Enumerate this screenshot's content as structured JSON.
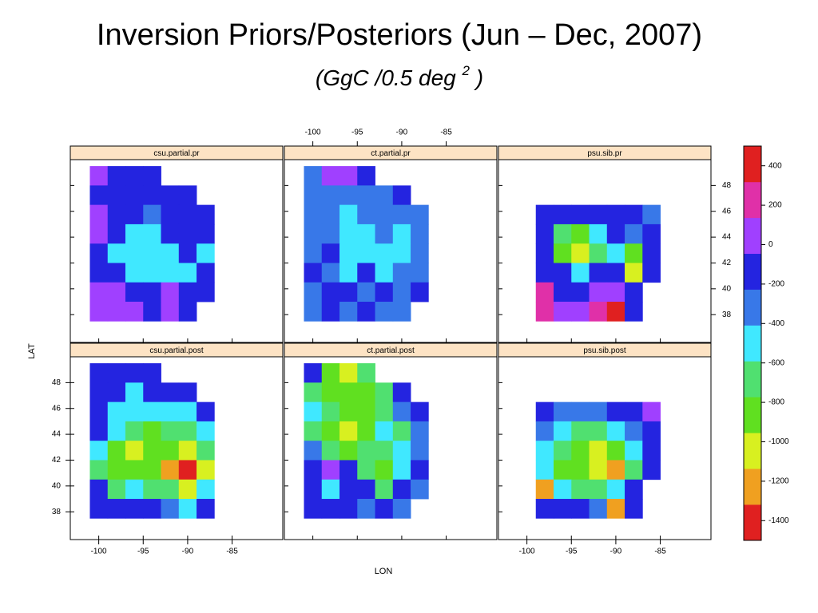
{
  "chart_data": {
    "type": "heatmap",
    "title": "Inversion Priors/Posteriors (Jun – Dec, 2007)",
    "subtitle": "(GgC /0.5 deg",
    "subtitle_sup": "2",
    "subtitle_end": ")",
    "x_label": "LON",
    "y_label": "LAT",
    "xlim": [
      -103.2,
      -79.3
    ],
    "ylim": [
      35.85,
      50.0
    ],
    "xticks": [
      -100,
      -95,
      -90,
      -85
    ],
    "yticks": [
      38,
      40,
      42,
      44,
      46,
      48
    ],
    "cell_lon": [
      -100,
      -98,
      -96,
      -94,
      -92,
      -90,
      -88,
      -86
    ],
    "cell_lat": [
      48.75,
      47.25,
      45.75,
      44.25,
      42.75,
      41.25,
      39.75,
      38.25
    ],
    "colorbar": {
      "lim": [
        -1500,
        500
      ],
      "ticks": [
        -1400,
        -1200,
        -1000,
        -800,
        -600,
        -400,
        -200,
        0,
        200,
        400
      ],
      "colors": [
        "#e02020",
        "#f0a020",
        "#d8f020",
        "#60e020",
        "#50e070",
        "#40e8ff",
        "#3878e8",
        "#2424e0",
        "#a040ff",
        "#e030a8",
        "#e02020"
      ]
    },
    "panels": [
      {
        "name": "csu.partial.pr",
        "values": [
          [
            0,
            -150,
            -150,
            -150,
            null,
            null,
            null,
            null
          ],
          [
            -150,
            -150,
            -150,
            -150,
            -150,
            -150,
            null,
            null
          ],
          [
            0,
            -150,
            -150,
            -300,
            -150,
            -150,
            -150,
            null
          ],
          [
            0,
            -150,
            -500,
            -500,
            -150,
            -150,
            -150,
            null
          ],
          [
            -150,
            -500,
            -500,
            -500,
            -500,
            -150,
            -500,
            null
          ],
          [
            -150,
            -150,
            -500,
            -500,
            -500,
            -500,
            -150,
            null
          ],
          [
            0,
            0,
            -150,
            -150,
            0,
            -150,
            -150,
            null
          ],
          [
            0,
            0,
            0,
            -150,
            0,
            -150,
            null,
            null
          ]
        ]
      },
      {
        "name": "ct.partial.pr",
        "values": [
          [
            -300,
            0,
            0,
            -150,
            null,
            null,
            null,
            null
          ],
          [
            -300,
            -300,
            -300,
            -300,
            -300,
            -150,
            null,
            null
          ],
          [
            -300,
            -300,
            -500,
            -300,
            -300,
            -300,
            -300,
            null
          ],
          [
            -300,
            -300,
            -500,
            -500,
            -300,
            -500,
            -300,
            null
          ],
          [
            -300,
            -150,
            -500,
            -500,
            -500,
            -500,
            -300,
            null
          ],
          [
            -150,
            -300,
            -500,
            -150,
            -500,
            -300,
            -300,
            null
          ],
          [
            -300,
            -150,
            -150,
            -300,
            -150,
            -300,
            -150,
            null
          ],
          [
            -300,
            -150,
            -300,
            -150,
            -300,
            -300,
            null,
            null
          ]
        ]
      },
      {
        "name": "psu.sib.pr",
        "values": [
          [
            null,
            null,
            null,
            null,
            null,
            null,
            null,
            null
          ],
          [
            null,
            null,
            null,
            null,
            null,
            null,
            null,
            null
          ],
          [
            null,
            -150,
            -150,
            -150,
            -150,
            -150,
            -150,
            -300
          ],
          [
            null,
            -150,
            -650,
            -850,
            -500,
            -150,
            -300,
            -150
          ],
          [
            null,
            -150,
            -850,
            -1000,
            -650,
            -500,
            -850,
            -150
          ],
          [
            null,
            -150,
            -150,
            -500,
            -150,
            -150,
            -1000,
            -150
          ],
          [
            null,
            300,
            -150,
            -150,
            0,
            0,
            -150,
            null
          ],
          [
            null,
            300,
            0,
            0,
            300,
            400,
            -150,
            null
          ]
        ]
      },
      {
        "name": "csu.partial.post",
        "values": [
          [
            -150,
            -150,
            -150,
            -150,
            null,
            null,
            null,
            null
          ],
          [
            -150,
            -150,
            -500,
            -150,
            -150,
            -150,
            null,
            null
          ],
          [
            -150,
            -500,
            -500,
            -500,
            -500,
            -500,
            -150,
            null
          ],
          [
            -150,
            -500,
            -650,
            -850,
            -650,
            -650,
            -500,
            null
          ],
          [
            -500,
            -850,
            -1000,
            -850,
            -850,
            -1000,
            -650,
            null
          ],
          [
            -650,
            -850,
            -850,
            -850,
            -1200,
            -1400,
            -1000,
            null
          ],
          [
            -150,
            -650,
            -500,
            -650,
            -650,
            -1000,
            -500,
            null
          ],
          [
            -150,
            -150,
            -150,
            -150,
            -300,
            -500,
            -150,
            null
          ]
        ]
      },
      {
        "name": "ct.partial.post",
        "values": [
          [
            -150,
            -850,
            -1000,
            -650,
            null,
            null,
            null,
            null
          ],
          [
            -650,
            -850,
            -850,
            -850,
            -650,
            -150,
            null,
            null
          ],
          [
            -500,
            -650,
            -850,
            -850,
            -650,
            -300,
            -150,
            null
          ],
          [
            -650,
            -850,
            -1000,
            -850,
            -500,
            -650,
            -300,
            null
          ],
          [
            -300,
            -650,
            -850,
            -650,
            -650,
            -500,
            -300,
            null
          ],
          [
            -150,
            0,
            -150,
            -650,
            -850,
            -500,
            -150,
            null
          ],
          [
            -150,
            -500,
            -150,
            -150,
            -650,
            -150,
            -300,
            null
          ],
          [
            -150,
            -150,
            -150,
            -300,
            -150,
            -300,
            null,
            null
          ]
        ]
      },
      {
        "name": "psu.sib.post",
        "values": [
          [
            null,
            null,
            null,
            null,
            null,
            null,
            null,
            null
          ],
          [
            null,
            null,
            null,
            null,
            null,
            null,
            null,
            null
          ],
          [
            null,
            -150,
            -300,
            -300,
            -300,
            -150,
            -150,
            0
          ],
          [
            null,
            -300,
            -500,
            -650,
            -650,
            -500,
            -300,
            -150
          ],
          [
            null,
            -500,
            -650,
            -850,
            -1000,
            -850,
            -500,
            -150
          ],
          [
            null,
            -500,
            -850,
            -850,
            -1000,
            -1200,
            -650,
            -150
          ],
          [
            null,
            -1200,
            -500,
            -650,
            -650,
            -500,
            -150,
            null
          ],
          [
            null,
            -150,
            -150,
            -150,
            -300,
            -1300,
            -150,
            null
          ]
        ]
      }
    ]
  }
}
